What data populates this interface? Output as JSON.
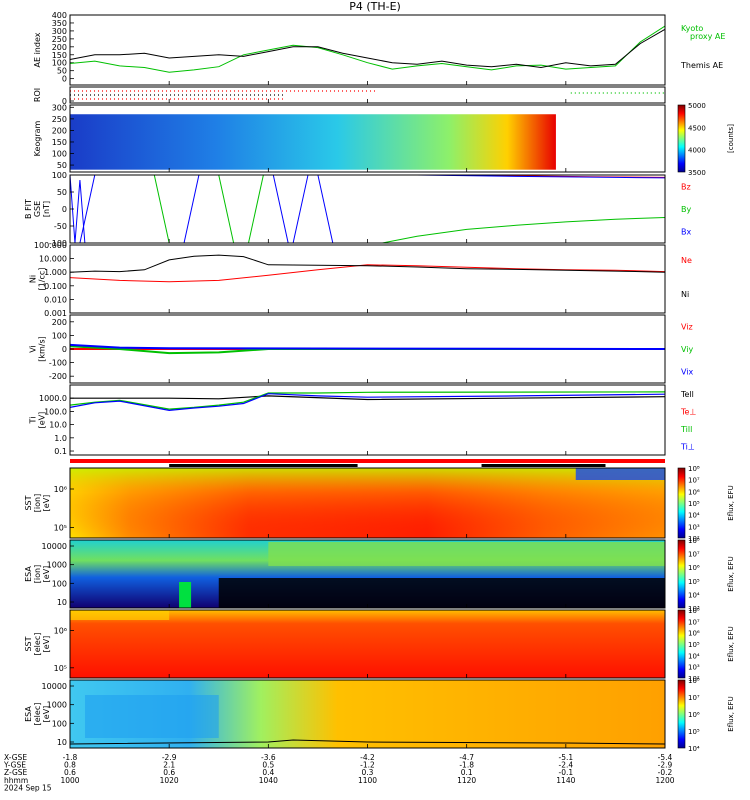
{
  "title": "P4 (TH-E)",
  "chart_data": [
    {
      "type": "line",
      "panel": "ae",
      "ylabel": "AE index",
      "ylim": [
        -40,
        400
      ],
      "yticks": [
        0,
        50,
        100,
        150,
        200,
        250,
        300,
        350,
        400
      ],
      "legend": [
        "Kyoto",
        "proxy AE",
        "Themis AE"
      ],
      "series": [
        {
          "name": "Kyoto proxy AE",
          "color": "#00c000",
          "x": [
            1000,
            1005,
            1010,
            1015,
            1020,
            1025,
            1030,
            1035,
            1040,
            1045,
            1050,
            1055,
            1100,
            1105,
            1110,
            1115,
            1120,
            1125,
            1130,
            1135,
            1140,
            1145,
            1150,
            1155,
            1200
          ],
          "y": [
            95,
            110,
            80,
            70,
            40,
            55,
            75,
            150,
            180,
            210,
            195,
            150,
            100,
            60,
            80,
            95,
            75,
            55,
            80,
            85,
            60,
            70,
            80,
            230,
            330
          ]
        },
        {
          "name": "Themis AE",
          "color": "#000000",
          "x": [
            1000,
            1005,
            1010,
            1015,
            1020,
            1025,
            1030,
            1035,
            1040,
            1045,
            1050,
            1055,
            1100,
            1105,
            1110,
            1115,
            1120,
            1125,
            1130,
            1135,
            1140,
            1145,
            1150,
            1155,
            1200
          ],
          "y": [
            120,
            150,
            150,
            160,
            130,
            140,
            150,
            140,
            170,
            200,
            200,
            160,
            130,
            100,
            90,
            110,
            85,
            75,
            90,
            70,
            100,
            80,
            90,
            220,
            310
          ]
        }
      ]
    },
    {
      "type": "scatter",
      "panel": "roi",
      "ylabel": "ROI",
      "series": [
        {
          "name": "roi-red",
          "color": "#ff0000",
          "x_range": [
            1000,
            1102
          ]
        },
        {
          "name": "roi-black",
          "color": "#000000",
          "x_range": [
            1000,
            1043
          ]
        },
        {
          "name": "roi-green",
          "color": "#00c000",
          "x_range": [
            1141,
            1200
          ]
        }
      ]
    },
    {
      "type": "heatmap",
      "panel": "keogram",
      "ylabel": "Keogram",
      "ylim": [
        20,
        310
      ],
      "yticks": [
        50,
        100,
        150,
        200,
        250,
        300
      ],
      "x_range": [
        1000,
        1138
      ],
      "colorbar": {
        "label": "[counts]",
        "ticks": [
          5000,
          4500,
          4000,
          3500
        ],
        "range": [
          3300,
          5000
        ]
      }
    },
    {
      "type": "line",
      "panel": "bfield",
      "ylabel": [
        "B FIT",
        "GSE",
        "[nT]"
      ],
      "ylim": [
        -100,
        100
      ],
      "yticks": [
        -100,
        -50,
        0,
        50,
        100
      ],
      "legend": [
        "Bz",
        "By",
        "Bx"
      ],
      "series": [
        {
          "name": "Bz",
          "color": "#ff0000",
          "x": [
            1115,
            1130,
            1145,
            1160,
            1200
          ],
          "y": [
            100,
            98,
            95,
            93,
            90
          ]
        },
        {
          "name": "By",
          "color": "#00c000",
          "x": [
            1103,
            1110,
            1120,
            1130,
            1140,
            1150,
            1160,
            1170,
            1180,
            1190,
            1200
          ],
          "y": [
            -100,
            -80,
            -60,
            -48,
            -38,
            -30,
            -25,
            -22,
            -18,
            -15,
            -12
          ]
        },
        {
          "name": "Bx",
          "color": "#0000ff",
          "x": [
            1110,
            1130,
            1150,
            1170,
            1200
          ],
          "y": [
            100,
            96,
            93,
            90,
            85
          ]
        }
      ]
    },
    {
      "type": "line",
      "panel": "density",
      "ylabel": [
        "Ni",
        "[1/cc]"
      ],
      "ylog": true,
      "ylim": [
        0.001,
        100
      ],
      "yticks": [
        "100.000",
        "10.000",
        "1.000",
        "0.100",
        "0.010",
        "0.001"
      ],
      "legend": [
        "Ne",
        "Ni"
      ],
      "series": [
        {
          "name": "Ne",
          "color": "#ff0000",
          "x": [
            1000,
            1010,
            1020,
            1030,
            1040,
            1050,
            1100,
            1110,
            1120,
            1130,
            1140,
            1150,
            1200
          ],
          "y": [
            0.4,
            0.25,
            0.2,
            0.25,
            0.6,
            1.5,
            3.5,
            3.0,
            2.3,
            1.8,
            1.5,
            1.4,
            1.1
          ]
        },
        {
          "name": "Ni",
          "color": "#000000",
          "x": [
            1000,
            1005,
            1010,
            1015,
            1020,
            1025,
            1030,
            1035,
            1040,
            1050,
            1100,
            1110,
            1120,
            1130,
            1140,
            1150,
            1200
          ],
          "y": [
            1.0,
            1.2,
            1.1,
            1.5,
            8,
            15,
            18,
            14,
            3.5,
            3.2,
            3.0,
            2.4,
            1.8,
            1.6,
            1.4,
            1.2,
            1.0
          ]
        }
      ]
    },
    {
      "type": "line",
      "panel": "velocity",
      "ylabel": [
        "Vi",
        "[km/s]"
      ],
      "ylim": [
        -250,
        250
      ],
      "yticks": [
        -200,
        -100,
        0,
        100,
        200
      ],
      "legend": [
        "Viz",
        "Viy",
        "Vix"
      ],
      "series": [
        {
          "name": "Viz",
          "color": "#ff0000",
          "x": [
            1000,
            1200
          ],
          "y": [
            0,
            0
          ]
        },
        {
          "name": "Viy",
          "color": "#00c000",
          "x": [
            1000,
            1010,
            1020,
            1030,
            1040,
            1200
          ],
          "y": [
            20,
            0,
            -30,
            -25,
            0,
            0
          ]
        },
        {
          "name": "Vix",
          "color": "#0000ff",
          "x": [
            1000,
            1010,
            1020,
            1200
          ],
          "y": [
            30,
            10,
            5,
            0
          ]
        }
      ]
    },
    {
      "type": "line",
      "panel": "temperature",
      "ylabel": [
        "Ti",
        "[eV]"
      ],
      "ylog": true,
      "ylim": [
        0.05,
        10000
      ],
      "yticks": [
        "1000.0",
        "100.0",
        "10.0",
        "1.0",
        "0.1"
      ],
      "legend": [
        "Tell",
        "Te⊥",
        "Till",
        "Ti⊥"
      ],
      "series": [
        {
          "name": "Tell",
          "color": "#000000",
          "x": [
            1000,
            1010,
            1020,
            1030,
            1040,
            1100,
            1200
          ],
          "y": [
            1000,
            1000,
            1000,
            900,
            1500,
            800,
            1300
          ]
        },
        {
          "name": "Te⊥",
          "color": "#ff0000",
          "x": [
            1000,
            1200
          ],
          "y": [
            0,
            0
          ]
        },
        {
          "name": "Till",
          "color": "#00c000",
          "x": [
            1000,
            1005,
            1010,
            1020,
            1025,
            1030,
            1035,
            1040,
            1050,
            1100,
            1200
          ],
          "y": [
            300,
            500,
            700,
            150,
            200,
            300,
            500,
            2500,
            2500,
            2800,
            3000
          ]
        },
        {
          "name": "Ti⊥",
          "color": "#0000ff",
          "x": [
            1000,
            1005,
            1010,
            1020,
            1025,
            1030,
            1035,
            1040,
            1050,
            1100,
            1130,
            1200
          ],
          "y": [
            200,
            450,
            600,
            120,
            180,
            250,
            400,
            2200,
            1500,
            1200,
            1500,
            2000
          ]
        }
      ]
    },
    {
      "type": "heatmap",
      "panel": "sst-ion",
      "ylabel": [
        "SST",
        "[ion]",
        "[eV]"
      ],
      "yticks": [
        "10⁶",
        "10⁵"
      ],
      "colorbar": {
        "label": "Eflux, EFU",
        "ticks": [
          "10⁸",
          "10⁷",
          "10⁶",
          "10⁵",
          "10⁴",
          "10³",
          "10²"
        ]
      }
    },
    {
      "type": "heatmap",
      "panel": "esa-ion",
      "ylabel": [
        "ESA",
        "[ion]",
        "[eV]"
      ],
      "yticks": [
        "10000",
        "1000",
        "100",
        "10"
      ],
      "colorbar": {
        "label": "Eflux, EFU",
        "ticks": [
          "10⁸",
          "10⁷",
          "10⁶",
          "10⁵",
          "10⁴",
          "10³"
        ]
      }
    },
    {
      "type": "heatmap",
      "panel": "sst-elec",
      "ylabel": [
        "SST",
        "[elec]",
        "[eV]"
      ],
      "yticks": [
        "10⁶",
        "10⁵"
      ],
      "colorbar": {
        "label": "Eflux, EFU",
        "ticks": [
          "10⁸",
          "10⁷",
          "10⁶",
          "10⁵",
          "10⁴",
          "10³",
          "10²"
        ]
      }
    },
    {
      "type": "heatmap",
      "panel": "esa-elec",
      "ylabel": [
        "ESA",
        "[elec]",
        "[eV]"
      ],
      "yticks": [
        "10000",
        "1000",
        "100",
        "10"
      ],
      "colorbar": {
        "label": "Eflux, EFU",
        "ticks": [
          "10⁸",
          "10⁷",
          "10⁶",
          "10⁵",
          "10⁴"
        ]
      }
    }
  ],
  "footer": {
    "row_labels": [
      "X-GSE",
      "Y-GSE",
      "Z-GSE",
      "hhmm",
      "2024 Sep 15"
    ],
    "columns": [
      {
        "time": "1000",
        "x": "-1.8",
        "y": "0.8",
        "z": "0.6",
        "hhmm": "1000"
      },
      {
        "time": "1020",
        "x": "-2.9",
        "y": "2.1",
        "z": "0.6",
        "hhmm": "1020"
      },
      {
        "time": "1040",
        "x": "-3.6",
        "y": "0.5",
        "z": "0.4",
        "hhmm": "1040"
      },
      {
        "time": "1100",
        "x": "-4.2",
        "y": "-1.2",
        "z": "0.3",
        "hhmm": "1100"
      },
      {
        "time": "1120",
        "x": "-4.7",
        "y": "-1.8",
        "z": "0.1",
        "hhmm": "1120"
      },
      {
        "time": "1140",
        "x": "-5.1",
        "y": "-2.4",
        "z": "-0.1",
        "hhmm": "1140"
      },
      {
        "time": "1200",
        "x": "-5.4",
        "y": "-2.9",
        "z": "-0.2",
        "hhmm": "1200"
      }
    ]
  }
}
